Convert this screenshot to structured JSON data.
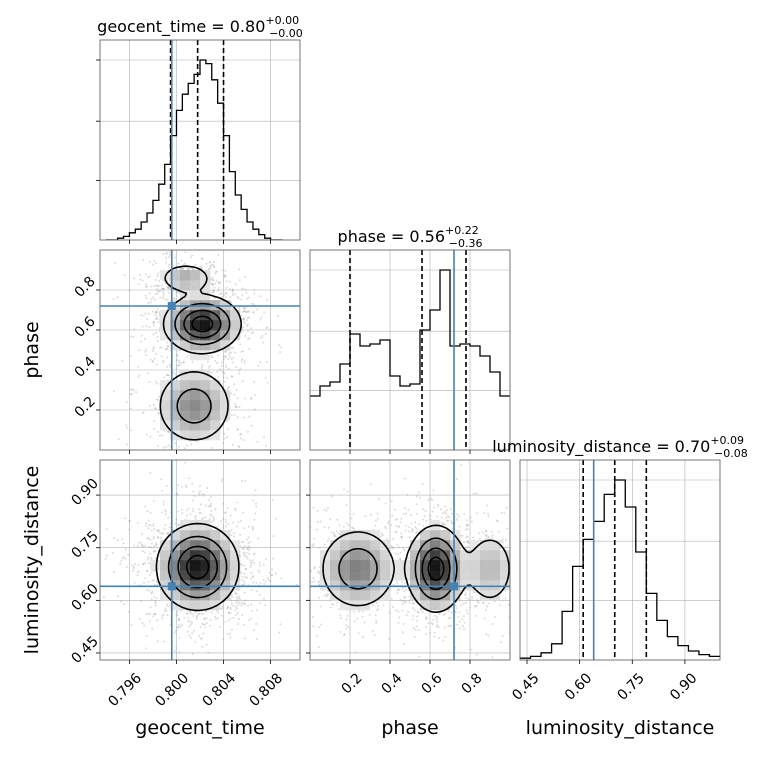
{
  "chart_data": {
    "type": "corner",
    "parameters": [
      "geocent_time",
      "phase",
      "luminosity_distance"
    ],
    "axis_ranges": {
      "geocent_time": [
        0.7935,
        0.8105
      ],
      "phase": [
        0.0,
        1.0
      ],
      "luminosity_distance": [
        0.43,
        1.0
      ]
    },
    "ticks": {
      "geocent_time": [
        0.796,
        0.8,
        0.804,
        0.808
      ],
      "phase": [
        0.2,
        0.4,
        0.6,
        0.8
      ],
      "luminosity_distance": [
        0.45,
        0.6,
        0.75,
        0.9
      ]
    },
    "tick_labels": {
      "geocent_time": [
        "0.796",
        "0.800",
        "0.804",
        "0.808"
      ],
      "phase": [
        "0.2",
        "0.4",
        "0.6",
        "0.8"
      ],
      "luminosity_distance": [
        "0.45",
        "0.60",
        "0.75",
        "0.90"
      ]
    },
    "truths": {
      "geocent_time": 0.7996,
      "phase": 0.72,
      "luminosity_distance": 0.64
    },
    "titles": {
      "geocent_time": {
        "label": "geocent_time = 0.80",
        "upper": "+0.00",
        "lower": "−0.00"
      },
      "phase": {
        "label": "phase = 0.56",
        "upper": "+0.22",
        "lower": "−0.36"
      },
      "luminosity_distance": {
        "label": "luminosity_distance = 0.70",
        "upper": "+0.09",
        "lower": "−0.08"
      }
    },
    "quantiles": {
      "geocent_time": [
        0.7995,
        0.8018,
        0.804
      ],
      "phase": [
        0.2,
        0.56,
        0.78
      ],
      "luminosity_distance": [
        0.61,
        0.7,
        0.79
      ]
    },
    "histograms": {
      "geocent_time": {
        "edges": [
          0.794,
          0.7945,
          0.795,
          0.7955,
          0.796,
          0.7965,
          0.797,
          0.7975,
          0.798,
          0.7985,
          0.799,
          0.7995,
          0.8,
          0.8005,
          0.801,
          0.8015,
          0.802,
          0.8025,
          0.803,
          0.8035,
          0.804,
          0.8045,
          0.805,
          0.8055,
          0.806,
          0.8065,
          0.807,
          0.8075,
          0.808,
          0.8085,
          0.809
        ],
        "counts": [
          0,
          0,
          1,
          2,
          4,
          6,
          10,
          15,
          22,
          31,
          42,
          58,
          72,
          81,
          87,
          92,
          100,
          98,
          89,
          76,
          58,
          38,
          25,
          17,
          10,
          6,
          3,
          1,
          0,
          0
        ]
      },
      "phase": {
        "edges": [
          0.0,
          0.05,
          0.1,
          0.15,
          0.2,
          0.25,
          0.3,
          0.35,
          0.4,
          0.45,
          0.5,
          0.55,
          0.6,
          0.65,
          0.7,
          0.75,
          0.8,
          0.85,
          0.9,
          0.95,
          1.0
        ],
        "counts": [
          27,
          32,
          34,
          43,
          58,
          52,
          53,
          55,
          37,
          32,
          33,
          60,
          70,
          90,
          52,
          53,
          52,
          47,
          39,
          27
        ]
      },
      "luminosity_distance": {
        "edges": [
          0.43,
          0.46,
          0.49,
          0.52,
          0.55,
          0.58,
          0.61,
          0.64,
          0.67,
          0.7,
          0.73,
          0.76,
          0.79,
          0.82,
          0.85,
          0.88,
          0.91,
          0.94,
          0.97,
          1.0
        ],
        "counts": [
          1,
          2,
          4,
          9,
          27,
          52,
          67,
          77,
          92,
          100,
          85,
          60,
          37,
          22,
          13,
          8,
          5,
          3,
          2
        ]
      }
    },
    "density_blobs": {
      "phase_vs_geocent_time": [
        {
          "x": 0.8022,
          "y": 0.63,
          "sx": 0.0016,
          "sy": 0.07,
          "w": 1.0
        },
        {
          "x": 0.8008,
          "y": 0.86,
          "sx": 0.0012,
          "sy": 0.04,
          "w": 0.35
        },
        {
          "x": 0.8015,
          "y": 0.22,
          "sx": 0.0017,
          "sy": 0.1,
          "w": 0.5
        }
      ],
      "luminosity_distance_vs_geocent_time": [
        {
          "x": 0.8018,
          "y": 0.695,
          "sx": 0.0017,
          "sy": 0.06,
          "w": 1.0
        }
      ],
      "luminosity_distance_vs_phase": [
        {
          "x": 0.63,
          "y": 0.69,
          "sx": 0.07,
          "sy": 0.06,
          "w": 1.0
        },
        {
          "x": 0.24,
          "y": 0.69,
          "sx": 0.1,
          "sy": 0.06,
          "w": 0.55
        },
        {
          "x": 0.9,
          "y": 0.69,
          "sx": 0.07,
          "sy": 0.06,
          "w": 0.3
        }
      ]
    },
    "contour_levels": [
      0.12,
      0.35,
      0.62,
      0.86
    ],
    "grid": true,
    "legend": "none"
  }
}
